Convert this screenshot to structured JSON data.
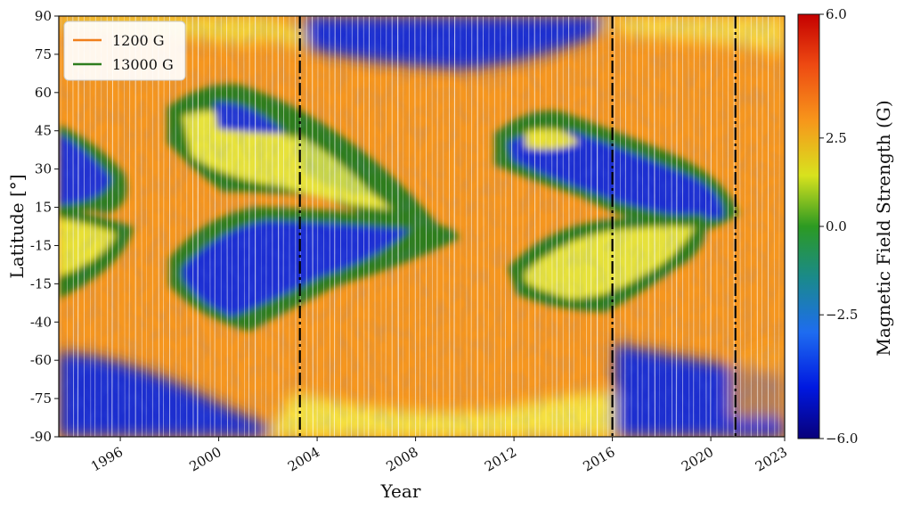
{
  "chart_data": {
    "type": "heatmap",
    "title": "",
    "xlabel": "Year",
    "ylabel": "Latitude [°]",
    "colorbar_label": "Magnetic Field Strength (G)",
    "x_ticks": [
      "1996",
      "2000",
      "2004",
      "2008",
      "2012",
      "2016",
      "2020",
      "2023"
    ],
    "y_ticks": [
      "-90",
      "-75",
      "-60",
      "-40",
      "-15",
      "-15",
      "15",
      "30",
      "45",
      "60",
      "75",
      "90"
    ],
    "colorbar_ticks": [
      "-6.0",
      "-2.5",
      "0.0",
      "2.5",
      "6.0"
    ],
    "colorbar_range": [
      -6.0,
      6.0
    ],
    "x_range": [
      1993.5,
      2023.0
    ],
    "legend": {
      "placement": "top-left",
      "entries": [
        {
          "label": "1200 G",
          "color": "#f07f1c"
        },
        {
          "label": "13000 G",
          "color": "#2e7d1e"
        }
      ]
    },
    "vertical_markers": [
      2003.3,
      2016.0,
      2021.0
    ],
    "colors": {
      "background": "#f5961f",
      "negative_polar": "#1f2fd0",
      "positive_polar": "#f2e034",
      "contour_green": "#2e7d1e",
      "marker": "#000000",
      "streak": "#ffffff"
    }
  }
}
